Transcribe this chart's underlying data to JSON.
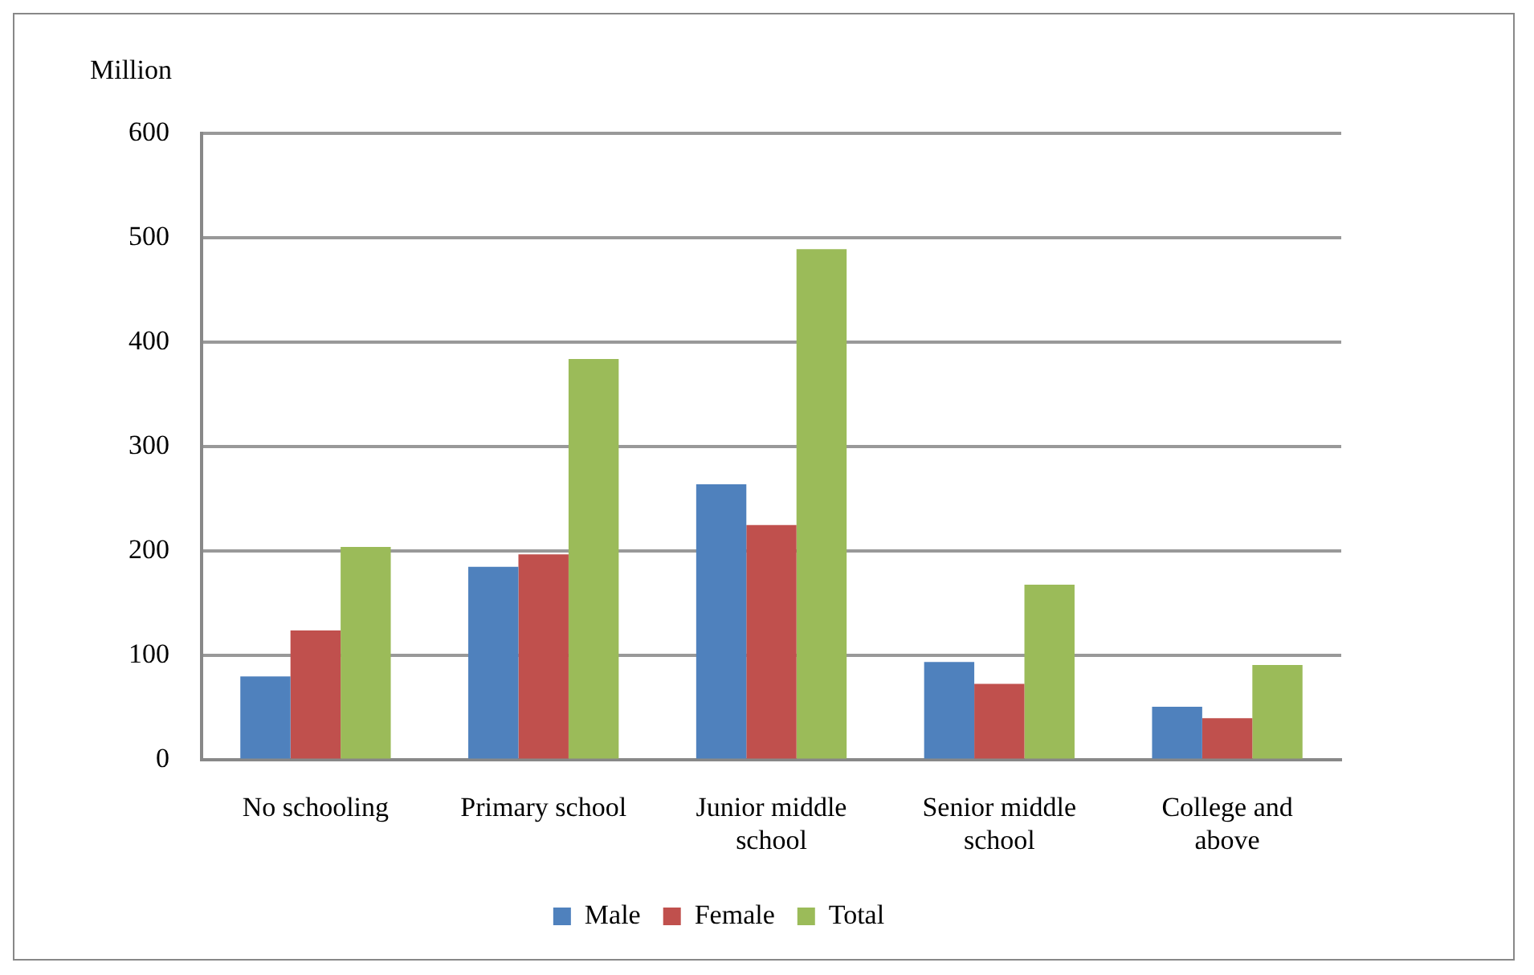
{
  "chart_data": {
    "type": "bar",
    "ylabel": "Million",
    "categories": [
      "No schooling",
      "Primary school",
      "Junior middle school",
      "Senior middle school",
      "College and above"
    ],
    "series": [
      {
        "name": "Male",
        "color": "#4f81bd",
        "values": [
          80,
          185,
          264,
          94,
          51
        ]
      },
      {
        "name": "Female",
        "color": "#c0504d",
        "values": [
          124,
          197,
          225,
          73,
          40
        ]
      },
      {
        "name": "Total",
        "color": "#9bbb59",
        "values": [
          204,
          384,
          489,
          168,
          91
        ]
      }
    ],
    "ylim": [
      0,
      600
    ],
    "yticks": [
      0,
      100,
      200,
      300,
      400,
      500,
      600
    ],
    "grid": "y",
    "legend": "bottom"
  }
}
